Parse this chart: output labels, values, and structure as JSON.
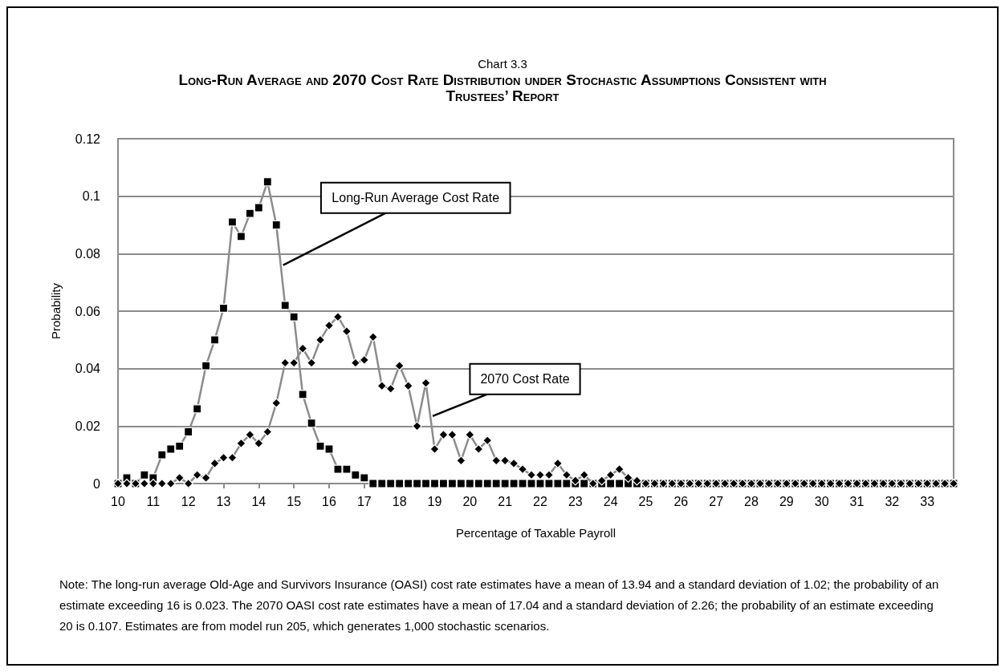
{
  "chart_data": {
    "type": "line",
    "subtitle": "Chart 3.3",
    "title": "Long-Run Average and 2070 Cost Rate Distribution under Stochastic Assumptions Consistent with Trustees’ Report",
    "xlabel": "Percentage of Taxable Payroll",
    "ylabel": "Probability",
    "x": [
      10,
      10.25,
      10.5,
      10.75,
      11,
      11.25,
      11.5,
      11.75,
      12,
      12.25,
      12.5,
      12.75,
      13,
      13.25,
      13.5,
      13.75,
      14,
      14.25,
      14.5,
      14.75,
      15,
      15.25,
      15.5,
      15.75,
      16,
      16.25,
      16.5,
      16.75,
      17,
      17.25,
      17.5,
      17.75,
      18,
      18.25,
      18.5,
      18.75,
      19,
      19.25,
      19.5,
      19.75,
      20,
      20.25,
      20.5,
      20.75,
      21,
      21.25,
      21.5,
      21.75,
      22,
      22.25,
      22.5,
      22.75,
      23,
      23.25,
      23.5,
      23.75,
      24,
      24.25,
      24.5,
      24.75,
      25,
      25.25,
      25.5,
      25.75,
      26,
      26.25,
      26.5,
      26.75,
      27,
      27.25,
      27.5,
      27.75,
      28,
      28.25,
      28.5,
      28.75,
      29,
      29.25,
      29.5,
      29.75,
      30,
      30.25,
      30.5,
      30.75,
      31,
      31.25,
      31.5,
      31.75,
      32,
      32.25,
      32.5,
      32.75,
      33,
      33.25,
      33.5,
      33.75
    ],
    "series": [
      {
        "name": "Long-Run Average Cost Rate",
        "color": "#000000",
        "marker": "square",
        "values": [
          0,
          0.002,
          0,
          0.003,
          0.002,
          0.01,
          0.012,
          0.013,
          0.018,
          0.026,
          0.041,
          0.05,
          0.061,
          0.091,
          0.086,
          0.094,
          0.096,
          0.105,
          0.09,
          0.062,
          0.058,
          0.031,
          0.021,
          0.013,
          0.012,
          0.005,
          0.005,
          0.003,
          0.002,
          0,
          0,
          0,
          0,
          0,
          0,
          0,
          0,
          0,
          0,
          0,
          0,
          0,
          0,
          0,
          0,
          0,
          0,
          0,
          0,
          0,
          0,
          0,
          0,
          0,
          0,
          0,
          0,
          0,
          0,
          0,
          0,
          0,
          0,
          0,
          0,
          0,
          0,
          0,
          0,
          0,
          0,
          0,
          0,
          0,
          0,
          0,
          0,
          0,
          0,
          0,
          0,
          0,
          0,
          0,
          0,
          0,
          0,
          0,
          0,
          0,
          0,
          0,
          0,
          0,
          0,
          0
        ]
      },
      {
        "name": "2070 Cost Rate",
        "color": "#000000",
        "marker": "diamond",
        "values": [
          0,
          0,
          0,
          0,
          0,
          0,
          0,
          0.002,
          0,
          0.003,
          0.002,
          0.007,
          0.009,
          0.009,
          0.014,
          0.017,
          0.014,
          0.018,
          0.028,
          0.042,
          0.042,
          0.047,
          0.042,
          0.05,
          0.055,
          0.058,
          0.053,
          0.042,
          0.043,
          0.051,
          0.034,
          0.033,
          0.041,
          0.034,
          0.02,
          0.035,
          0.012,
          0.017,
          0.017,
          0.008,
          0.017,
          0.012,
          0.015,
          0.008,
          0.008,
          0.007,
          0.005,
          0.003,
          0.003,
          0.003,
          0.007,
          0.003,
          0.001,
          0.003,
          0,
          0.001,
          0.003,
          0.005,
          0.002,
          0.001,
          0,
          0,
          0,
          0,
          0,
          0,
          0,
          0,
          0,
          0,
          0,
          0,
          0,
          0,
          0,
          0,
          0,
          0,
          0,
          0,
          0,
          0,
          0,
          0,
          0,
          0,
          0,
          0,
          0,
          0,
          0,
          0,
          0,
          0,
          0,
          0
        ]
      }
    ],
    "xlim": [
      10,
      33.75
    ],
    "xticks": [
      10,
      11,
      12,
      13,
      14,
      15,
      16,
      17,
      18,
      19,
      20,
      21,
      22,
      23,
      24,
      25,
      26,
      27,
      28,
      29,
      30,
      31,
      32,
      33
    ],
    "ylim": [
      0,
      0.12
    ],
    "yticks": [
      0,
      0.02,
      0.04,
      0.06,
      0.08,
      0.1,
      0.12
    ],
    "grid": "y",
    "legend": false,
    "annotations": [
      "Note: The long-run average Old-Age and Survivors Insurance (OASI) cost rate estimates have a mean of 13.94 and a standard deviation of 1.02; the probability of an estimate exceeding 16 is 0.023. The 2070 OASI cost rate estimates have a mean of 17.04 and a standard deviation of 2.26; the probability of an estimate exceeding 20 is 0.107. Estimates are from model run 205, which generates 1,000 stochastic scenarios."
    ]
  }
}
